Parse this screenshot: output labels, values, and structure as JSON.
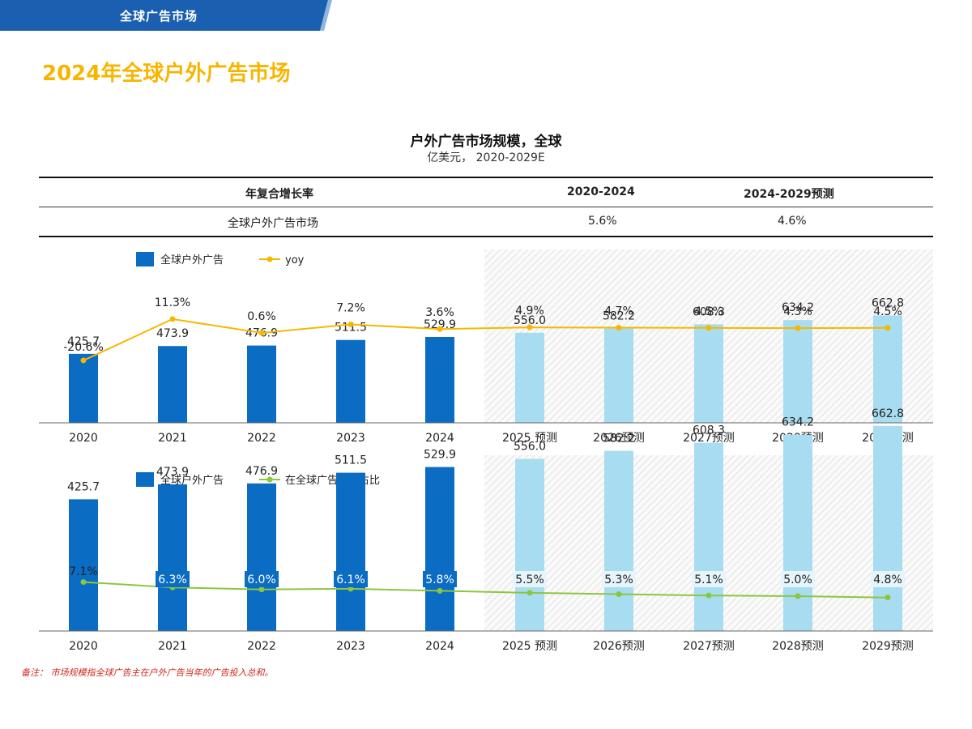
{
  "header": {
    "tab_label": "全球广告市场",
    "tab_color": "#1b5fb0"
  },
  "page_title": "2024年全球户外广告市场",
  "chart_title": "户外广告市场规模，全球",
  "chart_subtitle": "亿美元， 2020-2029E",
  "cagr_table": {
    "header": [
      "年复合增长率",
      "2020-2024",
      "2024-2029预测"
    ],
    "rows": [
      {
        "label": "全球户外广告市场",
        "v1": "5.6%",
        "v2": "4.6%"
      }
    ]
  },
  "chart_data": [
    {
      "type": "bar",
      "categories": [
        "2020",
        "2021",
        "2022",
        "2023",
        "2024",
        "2025 预测",
        "2026预测",
        "2027预测",
        "2028预测",
        "2029预测"
      ],
      "series": [
        {
          "name": "全球户外广告",
          "values": [
            425.7,
            473.9,
            476.9,
            511.5,
            529.9,
            556.0,
            582.2,
            608.3,
            634.2,
            662.8
          ]
        },
        {
          "name": "yoy",
          "type": "line",
          "values": [
            -20.6,
            11.3,
            0.6,
            7.2,
            3.6,
            4.9,
            4.7,
            4.5,
            4.3,
            4.5
          ],
          "unit": "%"
        }
      ],
      "value_labels": [
        "425.7",
        "473.9",
        "476.9",
        "511.5",
        "529.9",
        "556.0",
        "582.2",
        "608.3",
        "634.2",
        "662.8"
      ],
      "line_labels": [
        "-20.6%",
        "11.3%",
        "0.6%",
        "7.2%",
        "3.6%",
        "4.9%",
        "4.7%",
        "4.5%",
        "4.3%",
        "4.5%"
      ],
      "forecast_start_index": 5,
      "colors": {
        "actual": "#0a6cc2",
        "forecast": "#a7dcf1",
        "line": "#f5b800"
      }
    },
    {
      "type": "bar",
      "categories": [
        "2020",
        "2021",
        "2022",
        "2023",
        "2024",
        "2025 预测",
        "2026预测",
        "2027预测",
        "2028预测",
        "2029预测"
      ],
      "series": [
        {
          "name": "全球户外广告",
          "values": [
            425.7,
            473.9,
            476.9,
            511.5,
            529.9,
            556.0,
            582.2,
            608.3,
            634.2,
            662.8
          ]
        },
        {
          "name": "在全球广告市场占比",
          "type": "line",
          "values": [
            7.1,
            6.3,
            6.0,
            6.1,
            5.8,
            5.5,
            5.3,
            5.1,
            5.0,
            4.8
          ],
          "unit": "%"
        }
      ],
      "value_labels": [
        "425.7",
        "473.9",
        "476.9",
        "511.5",
        "529.9",
        "556.0",
        "582.2",
        "608.3",
        "634.2",
        "662.8"
      ],
      "line_labels": [
        "7.1%",
        "6.3%",
        "6.0%",
        "6.1%",
        "5.8%",
        "5.5%",
        "5.3%",
        "5.1%",
        "5.0%",
        "4.8%"
      ],
      "forecast_start_index": 5,
      "colors": {
        "actual": "#0a6cc2",
        "forecast": "#a7dcf1",
        "line": "#8cc63f"
      }
    }
  ],
  "footnote": "备注： 市场规模指全球广告主在户外广告当年的广告投入总和。"
}
